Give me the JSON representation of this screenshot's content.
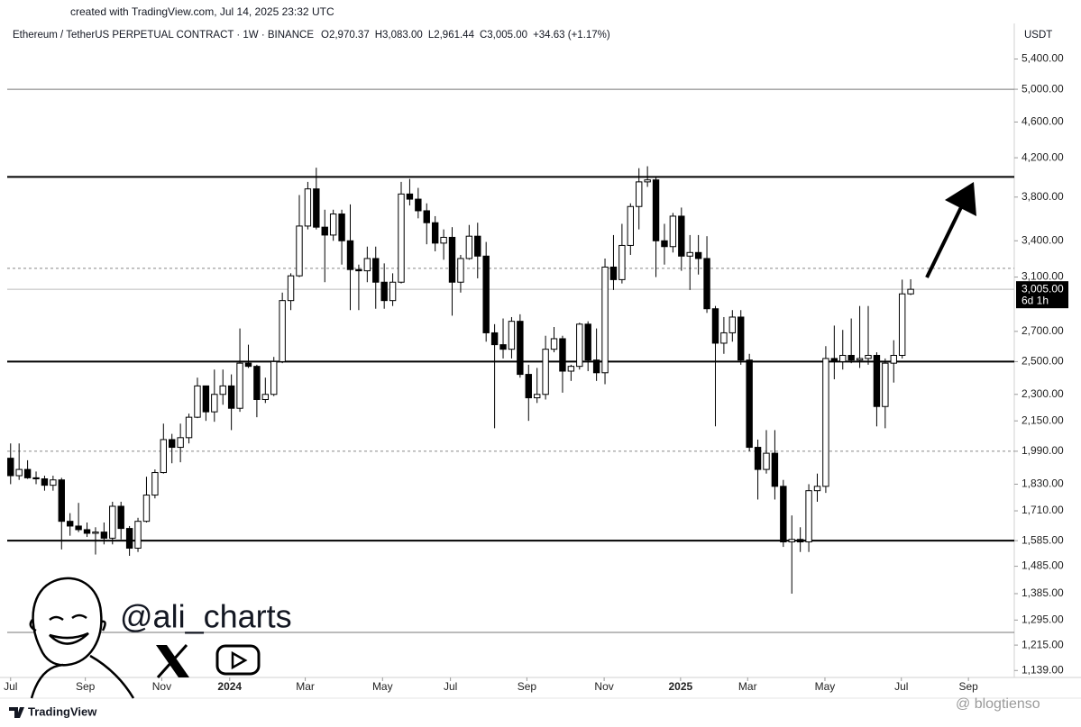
{
  "created": "created with TradingView.com, Jul 14, 2025 23:32 UTC",
  "header": {
    "symbol": "Ethereum / TetherUS PERPETUAL CONTRACT · 1W · BINANCE",
    "ohlc": [
      "O2,970.37",
      "H3,083.00",
      "L2,961.44",
      "C3,005.00",
      "+34.63 (+1.17%)"
    ]
  },
  "currency": "USDT",
  "watermark": {
    "handle": "@ali_charts",
    "brand": "TradingView",
    "source": "@ blogtienso"
  },
  "chart_data": {
    "type": "candlestick",
    "log_scale": true,
    "up_color": "#ffffff",
    "down_color": "#000000",
    "outline_color": "#000000",
    "ylim": [
      1119,
      5885
    ],
    "yticks": [
      {
        "value": 5400,
        "label": "5,400.00"
      },
      {
        "value": 5000,
        "label": "5,000.00"
      },
      {
        "value": 4600,
        "label": "4,600.00"
      },
      {
        "value": 4200,
        "label": "4,200.00"
      },
      {
        "value": 3800,
        "label": "3,800.00"
      },
      {
        "value": 3400,
        "label": "3,400.00"
      },
      {
        "value": 3100,
        "label": "3,100.00"
      },
      {
        "value": 2700,
        "label": "2,700.00"
      },
      {
        "value": 2500,
        "label": "2,500.00"
      },
      {
        "value": 2300,
        "label": "2,300.00"
      },
      {
        "value": 2150,
        "label": "2,150.00"
      },
      {
        "value": 1990,
        "label": "1,990.00"
      },
      {
        "value": 1830,
        "label": "1,830.00"
      },
      {
        "value": 1710,
        "label": "1,710.00"
      },
      {
        "value": 1585,
        "label": "1,585.00"
      },
      {
        "value": 1485,
        "label": "1,485.00"
      },
      {
        "value": 1385,
        "label": "1,385.00"
      },
      {
        "value": 1295,
        "label": "1,295.00"
      },
      {
        "value": 1215,
        "label": "1,215.00"
      },
      {
        "value": 1139,
        "label": "1,139.00"
      }
    ],
    "xlim": [
      -0.4,
      118.2
    ],
    "xticks": [
      {
        "value": 0,
        "label": "Jul"
      },
      {
        "value": 8.8,
        "label": "Sep"
      },
      {
        "value": 17.8,
        "label": "Nov"
      },
      {
        "value": 25.8,
        "label": "2024"
      },
      {
        "value": 34.7,
        "label": "Mar"
      },
      {
        "value": 43.8,
        "label": "May"
      },
      {
        "value": 51.8,
        "label": "Jul"
      },
      {
        "value": 60.8,
        "label": "Sep"
      },
      {
        "value": 69.9,
        "label": "Nov"
      },
      {
        "value": 78.9,
        "label": "2025"
      },
      {
        "value": 86.8,
        "label": "Mar"
      },
      {
        "value": 95.9,
        "label": "May"
      },
      {
        "value": 104.9,
        "label": "Jul"
      },
      {
        "value": 112.8,
        "label": "Sep"
      }
    ],
    "open": [
      1955,
      1870,
      1900,
      1860,
      1855,
      1825,
      1850,
      1665,
      1645,
      1630,
      1615,
      1620,
      1595,
      1730,
      1635,
      1555,
      1665,
      1780,
      1885,
      2050,
      2010,
      2060,
      2170,
      2350,
      2200,
      2300,
      2350,
      2220,
      2490,
      2470,
      2270,
      2300,
      2500,
      2920,
      3110,
      3530,
      3880,
      3520,
      3450,
      3640,
      3400,
      3160,
      3150,
      3250,
      3060,
      2920,
      3060,
      3830,
      3780,
      3670,
      3560,
      3380,
      3430,
      3060,
      3250,
      3440,
      3270,
      2690,
      2610,
      2580,
      2770,
      2420,
      2280,
      2300,
      2580,
      2650,
      2440,
      2470,
      2750,
      2510,
      2430,
      3180,
      3080,
      3360,
      3710,
      3950,
      3970,
      3400,
      3350,
      3620,
      3270,
      3300,
      3250,
      2860,
      2620,
      2690,
      2800,
      2510,
      2010,
      1900,
      1980,
      1820,
      1580,
      1590,
      1580,
      1800,
      1820,
      2520,
      2500,
      2540,
      2510,
      2520,
      2540,
      2230,
      2490,
      2540,
      2970.37
    ],
    "high": [
      2030,
      2030,
      1945,
      1890,
      1870,
      1870,
      1860,
      1700,
      1745,
      1660,
      1640,
      1660,
      1750,
      1750,
      1645,
      1680,
      1865,
      1900,
      2135,
      2080,
      2135,
      2190,
      2400,
      2350,
      2450,
      2450,
      2420,
      2720,
      2610,
      2480,
      2400,
      2530,
      2980,
      3130,
      3820,
      3950,
      4095,
      3680,
      3680,
      3680,
      3730,
      3200,
      3350,
      3350,
      3210,
      3130,
      3950,
      3980,
      3890,
      3740,
      3620,
      3500,
      3520,
      3280,
      3540,
      3560,
      3390,
      2750,
      2790,
      2800,
      2820,
      2480,
      2460,
      2670,
      2730,
      2670,
      2480,
      2760,
      2770,
      2720,
      3250,
      3450,
      3550,
      3740,
      4090,
      4110,
      4000,
      3550,
      3650,
      3700,
      3450,
      3450,
      3440,
      2880,
      2800,
      2850,
      2850,
      2550,
      2050,
      2100,
      2100,
      1850,
      1690,
      1640,
      1830,
      1880,
      2600,
      2740,
      2710,
      2790,
      2880,
      2880,
      2560,
      2520,
      2640,
      3080,
      3083
    ],
    "low": [
      1830,
      1850,
      1855,
      1830,
      1800,
      1800,
      1550,
      1605,
      1620,
      1600,
      1530,
      1570,
      1570,
      1590,
      1525,
      1540,
      1660,
      1765,
      1880,
      1930,
      1935,
      2030,
      2165,
      2150,
      2145,
      2240,
      2100,
      2200,
      2460,
      2170,
      2250,
      2290,
      2490,
      2850,
      3100,
      3500,
      3500,
      3060,
      3400,
      3200,
      2850,
      2850,
      3060,
      2860,
      2860,
      2880,
      3050,
      3720,
      3600,
      3370,
      3310,
      3240,
      2810,
      2980,
      3240,
      3090,
      2630,
      2110,
      2520,
      2520,
      2400,
      2150,
      2250,
      2270,
      2560,
      2310,
      2380,
      2450,
      2440,
      2380,
      2360,
      3000,
      3050,
      3280,
      3500,
      3900,
      3100,
      3200,
      3300,
      3150,
      3000,
      3120,
      2830,
      2120,
      2550,
      2630,
      2480,
      1990,
      1760,
      1880,
      1760,
      1560,
      1385,
      1540,
      1540,
      1750,
      1790,
      2390,
      2450,
      2490,
      2460,
      2480,
      2120,
      2110,
      2370,
      2520,
      2961.44
    ],
    "close": [
      1870,
      1900,
      1860,
      1855,
      1825,
      1850,
      1665,
      1645,
      1630,
      1615,
      1620,
      1595,
      1730,
      1635,
      1555,
      1665,
      1780,
      1885,
      2050,
      2010,
      2060,
      2170,
      2350,
      2200,
      2300,
      2350,
      2220,
      2490,
      2470,
      2270,
      2300,
      2500,
      2920,
      3110,
      3530,
      3880,
      3520,
      3450,
      3640,
      3400,
      3160,
      3150,
      3250,
      3060,
      2920,
      3060,
      3830,
      3780,
      3670,
      3560,
      3380,
      3430,
      3060,
      3250,
      3440,
      3270,
      2690,
      2610,
      2580,
      2770,
      2420,
      2280,
      2300,
      2580,
      2650,
      2440,
      2470,
      2750,
      2510,
      2430,
      3180,
      3080,
      3360,
      3710,
      3950,
      3970,
      3400,
      3350,
      3620,
      3270,
      3300,
      3250,
      2860,
      2620,
      2690,
      2800,
      2510,
      2010,
      1900,
      1980,
      1820,
      1580,
      1590,
      1580,
      1800,
      1820,
      2520,
      2500,
      2540,
      2510,
      2520,
      2540,
      2230,
      2490,
      2540,
      2970.37,
      3005
    ],
    "levels": [
      5000,
      4000,
      3170,
      2500,
      1990,
      1585,
      1255
    ],
    "level_styles": [
      "thin",
      "thick",
      "dashed",
      "thick",
      "dashed",
      "thick",
      "thin"
    ],
    "last_price": {
      "value": 3005,
      "label": "3,005.00",
      "countdown": "6d 1h"
    }
  }
}
